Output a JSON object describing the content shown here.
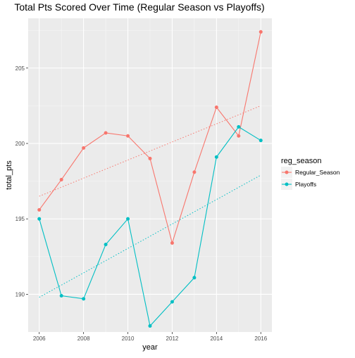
{
  "chart_data": {
    "type": "line",
    "title": "Total Pts Scored Over Time (Regular Season vs Playoffs)",
    "xlabel": "year",
    "ylabel": "total_pts",
    "x": [
      2006,
      2007,
      2008,
      2009,
      2010,
      2011,
      2012,
      2013,
      2014,
      2015,
      2016
    ],
    "xlim": [
      2005.5,
      2016.5
    ],
    "ylim": [
      187.5,
      208.3
    ],
    "x_ticks": [
      2006,
      2008,
      2010,
      2012,
      2014,
      2016
    ],
    "y_ticks": [
      190,
      195,
      200,
      205
    ],
    "grid": true,
    "legend": {
      "title": "reg_season",
      "position": "right"
    },
    "series": [
      {
        "name": "Regular_Season",
        "color": "#F8766D",
        "values": [
          195.6,
          197.6,
          199.7,
          200.7,
          200.5,
          199.0,
          193.4,
          198.1,
          202.4,
          200.5,
          207.4
        ],
        "trend": [
          196.5,
          202.5
        ]
      },
      {
        "name": "Playoffs",
        "color": "#00BFC4",
        "values": [
          195.0,
          189.9,
          189.7,
          193.3,
          195.0,
          187.9,
          189.5,
          191.1,
          199.1,
          201.1,
          200.2
        ],
        "trend": [
          189.8,
          197.9
        ]
      }
    ]
  }
}
